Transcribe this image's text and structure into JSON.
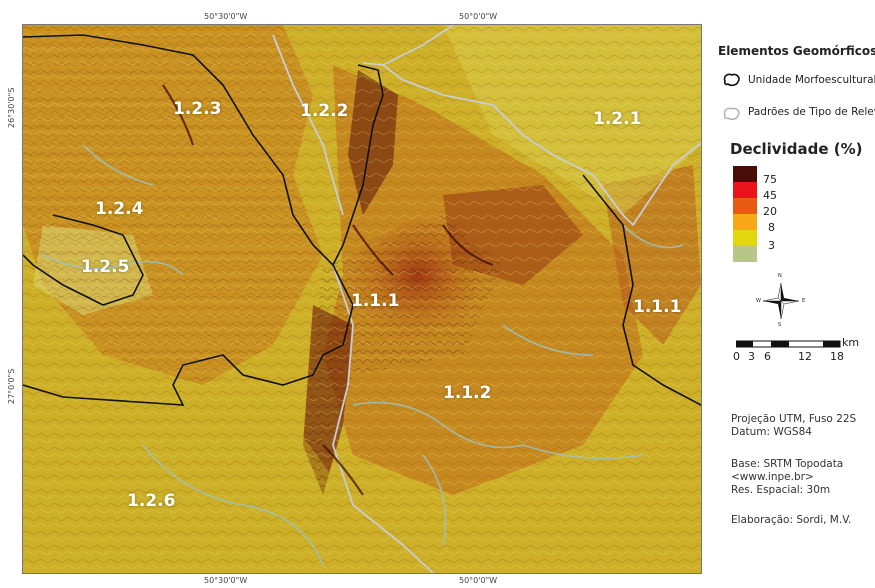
{
  "map": {
    "coordinates": {
      "top_left": "50°30'0\"W",
      "top_right": "50°0'0\"W",
      "bottom_left": "50°30'0\"W",
      "bottom_right": "50°0'0\"W",
      "left_top": "26°30'0\"S",
      "left_bottom": "27°0'0\"S"
    },
    "regions": [
      "1.2.3",
      "1.2.2",
      "1.2.1",
      "1.2.4",
      "1.2.5",
      "1.1.1",
      "1.1.1",
      "1.1.2",
      "1.2.6"
    ],
    "colors": {
      "morphosculptural_unit_line": "#111111",
      "relief_pattern_line": "#c8cdd6",
      "drainage": "#9ec2c2"
    }
  },
  "legend": {
    "title": "Elementos Geomórficos",
    "items": [
      "Unidade Morfoescultural",
      "Padrões de Tipo de Relevo"
    ],
    "slope_title": "Declividade (%)",
    "slope_classes": [
      {
        "label": "75",
        "color": "#4a0c06"
      },
      {
        "label": "45",
        "color": "#e8141a"
      },
      {
        "label": "20",
        "color": "#e85a10"
      },
      {
        "label": "8",
        "color": "#f6a816"
      },
      {
        "label": "3",
        "color": "#e2d60e"
      },
      {
        "label": "",
        "color": "#b8c68a"
      }
    ],
    "scale": {
      "ticks": [
        "0",
        "3",
        "6",
        "12",
        "18"
      ],
      "unit": "km"
    },
    "north_arrow": {
      "n": "N",
      "s": "S",
      "e": "E",
      "w": "W"
    }
  },
  "info": {
    "projection": [
      "Projeção UTM, Fuso 22S",
      "Datum: WGS84"
    ],
    "base": [
      "Base: SRTM Topodata",
      "<www.inpe.br>",
      "Res. Espacial: 30m"
    ],
    "author": "Elaboração: Sordi, M.V."
  }
}
